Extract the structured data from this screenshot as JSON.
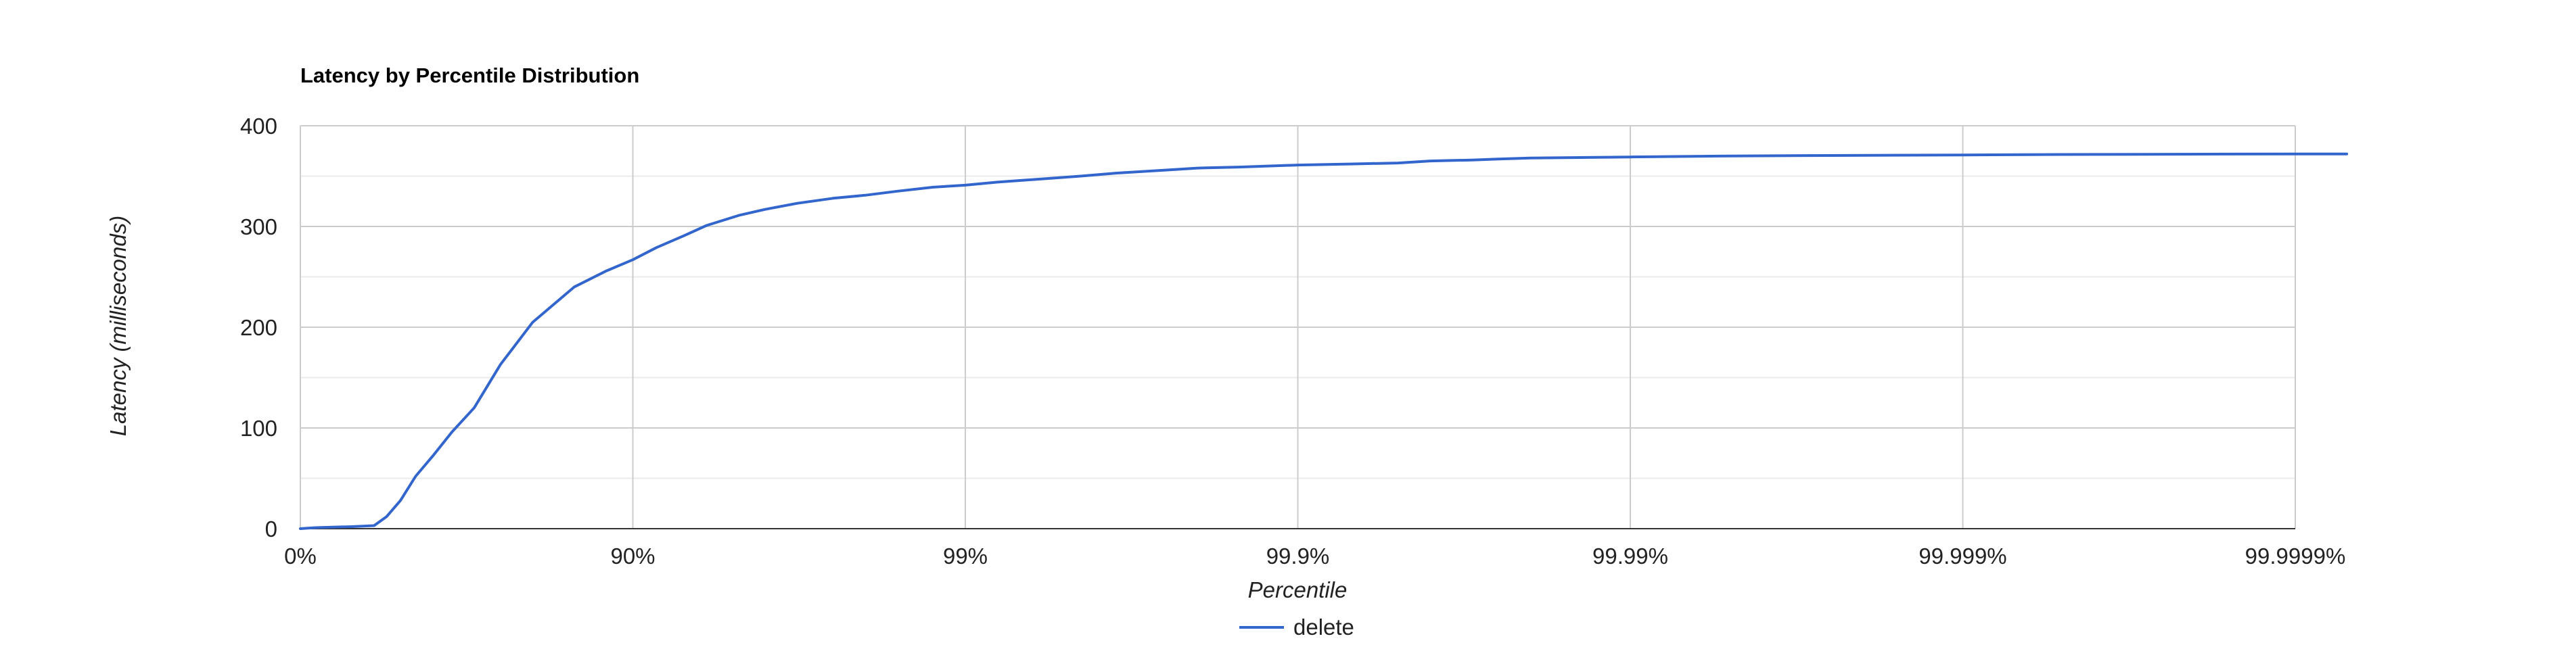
{
  "chart_data": {
    "type": "line",
    "title": "Latency by Percentile Distribution",
    "xlabel": "Percentile",
    "ylabel": "Latency (milliseconds)",
    "x_scale": "nines",
    "x_tick_labels": [
      "0%",
      "90%",
      "99%",
      "99.9%",
      "99.99%",
      "99.999%",
      "99.9999%"
    ],
    "x_ticks": [
      0,
      90,
      99,
      99.9,
      99.99,
      99.999,
      99.9999
    ],
    "y_ticks": [
      0,
      100,
      200,
      300,
      400
    ],
    "ylim": [
      0,
      400
    ],
    "grid": true,
    "legend_position": "bottom",
    "series": [
      {
        "name": "delete",
        "color": "#3366cc",
        "x": [
          0,
          5,
          10,
          20,
          30,
          40,
          45,
          50,
          55,
          60,
          65,
          70,
          75,
          80,
          85,
          88,
          90,
          91.5,
          93,
          94,
          95.2,
          96,
          96.8,
          97.5,
          98,
          98.4,
          98.75,
          99,
          99.2,
          99.4,
          99.55,
          99.65,
          99.75,
          99.8,
          99.85,
          99.9,
          99.93,
          99.95,
          99.96,
          99.97,
          99.975,
          99.98,
          99.99,
          99.995,
          99.9975,
          99.999,
          99.9995,
          99.9999,
          99.99993
        ],
        "values": [
          0,
          0.5,
          1,
          1.5,
          2,
          3,
          12,
          28,
          52,
          72,
          96,
          120,
          163,
          205,
          240,
          256,
          267,
          279,
          291,
          301,
          311,
          317,
          323,
          328,
          331,
          335,
          339,
          341,
          344,
          347,
          350,
          353,
          356,
          358,
          359,
          361,
          362,
          363,
          365,
          366,
          367,
          368,
          369,
          370,
          370.5,
          371,
          371.5,
          372,
          372
        ]
      }
    ]
  }
}
